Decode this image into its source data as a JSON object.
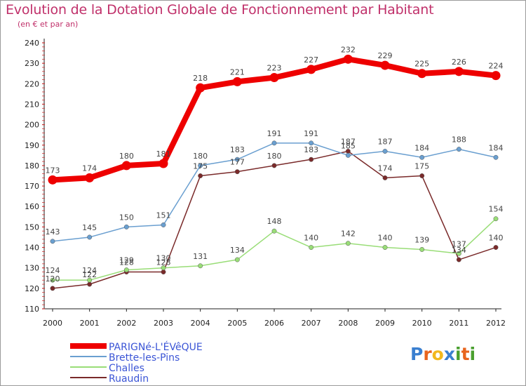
{
  "chart_data": {
    "type": "line",
    "title": "Evolution de la Dotation Globale de Fonctionnement par Habitant",
    "subtitle": "(en € et par an)",
    "categories": [
      "2000",
      "2001",
      "2002",
      "2003",
      "2004",
      "2005",
      "2006",
      "2007",
      "2008",
      "2009",
      "2010",
      "2011",
      "2012"
    ],
    "ylim": [
      110,
      240
    ],
    "yticks": [
      110,
      120,
      130,
      140,
      150,
      160,
      170,
      180,
      190,
      200,
      210,
      220,
      230,
      240
    ],
    "grid": false,
    "legend_position": "bottom-left",
    "series": [
      {
        "name": "PARIGNé-L'ÉVêQUE",
        "color": "#ee0000",
        "values": [
          173,
          174,
          180,
          181,
          218,
          221,
          223,
          227,
          232,
          229,
          225,
          226,
          224
        ]
      },
      {
        "name": "Brette-les-Pins",
        "color": "#6a9fd0",
        "values": [
          143,
          145,
          150,
          151,
          180,
          183,
          191,
          191,
          185,
          187,
          184,
          188,
          184
        ]
      },
      {
        "name": "Challes",
        "color": "#99dd77",
        "values": [
          124,
          124,
          129,
          130,
          131,
          134,
          148,
          140,
          142,
          140,
          139,
          137,
          154
        ]
      },
      {
        "name": "Ruaudin",
        "color": "#7a2a2a",
        "values": [
          120,
          122,
          128,
          128,
          175,
          177,
          180,
          183,
          187,
          174,
          175,
          134,
          140
        ]
      }
    ],
    "data_labels": {
      "PARIGNé-L'ÉVêQUE": [
        "173",
        "174",
        "180",
        "181",
        "218",
        "221",
        "223",
        "227",
        "232",
        "229",
        "225",
        "226",
        "224"
      ],
      "Brette-les-Pins": [
        "143",
        "145",
        "150",
        "151",
        "180",
        "183",
        "191",
        "191",
        "185",
        "187",
        "184",
        "188",
        "184"
      ],
      "Challes": [
        "124",
        "124",
        "129",
        "130",
        "131",
        "134",
        "148",
        "140",
        "142",
        "140",
        "139",
        "137",
        "154"
      ],
      "Ruaudin": [
        "120",
        "122",
        "128",
        "128",
        "175",
        "177",
        "180",
        "183",
        "187",
        "174",
        "175",
        "134",
        "140"
      ]
    }
  },
  "logo": {
    "text": "Proxiti",
    "colors": [
      "#3a7fd0",
      "#e8641e",
      "#f2b81e",
      "#3a7fd0",
      "#4a9f2f",
      "#e8641e",
      "#4a9f2f"
    ]
  }
}
